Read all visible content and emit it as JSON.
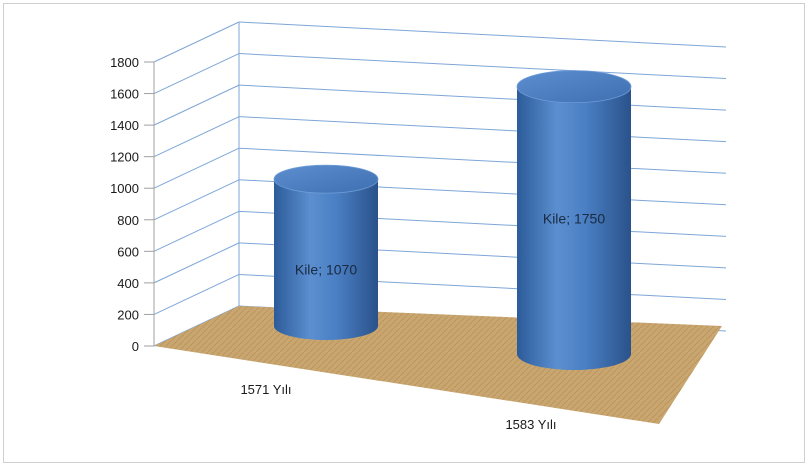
{
  "chart_data": {
    "type": "bar",
    "style": "3d-cylinder",
    "categories": [
      "1571 Yılı",
      "1583 Yılı"
    ],
    "series": [
      {
        "name": "Kile",
        "values": [
          1070,
          1750
        ]
      }
    ],
    "data_labels": [
      "Kile; 1070",
      "Kile; 1750"
    ],
    "yticks": [
      0,
      200,
      400,
      600,
      800,
      1000,
      1200,
      1400,
      1600,
      1800
    ],
    "ylim": [
      0,
      1800
    ],
    "title": "",
    "xlabel": "",
    "ylabel": "",
    "grid": true,
    "legend": "none",
    "colors": {
      "bar": "#4f81bd",
      "bar_dark": "#2f5f9f",
      "bar_light": "#8db3e2",
      "floor": "#c8a872",
      "gridline": "#7ea6d8",
      "axis": "#a0a0a0"
    }
  }
}
